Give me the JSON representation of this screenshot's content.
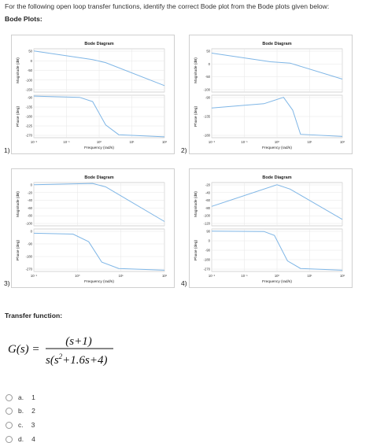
{
  "question": "For the following open loop transfer functions, identify the correct Bode plot from the Bode plots given below:",
  "bode_heading": "Bode Plots:",
  "tf_heading": "Transfer function:",
  "formula": {
    "lhs": "G(s) =",
    "numerator": "(s+1)",
    "denominator_prefix": "s(s",
    "denominator_exp": "2",
    "denominator_suffix": "+1.6s+4)"
  },
  "line_color": "#7fb6e6",
  "plots": [
    {
      "num": "1)",
      "title": "Bode Diagram",
      "mag_label": "Magnitude (dB)",
      "phase_label": "Phase (deg)",
      "xlabel": "Frequency  (rad/s)",
      "mag_ticks": [
        "50",
        "0",
        "-50",
        "-100",
        "-150"
      ],
      "phase_ticks": [
        "-90",
        "-135",
        "-180",
        "-225",
        "-270"
      ],
      "x_ticks": [
        "10⁻²",
        "10⁻¹",
        "10⁰",
        "10¹",
        "10²"
      ]
    },
    {
      "num": "2)",
      "title": "Bode Diagram",
      "mag_label": "Magnitude (dB)",
      "phase_label": "Phase (deg)",
      "xlabel": "Frequency  (rad/s)",
      "mag_ticks": [
        "50",
        "0",
        "-50",
        "-100"
      ],
      "phase_ticks": [
        "-90",
        "-135",
        "-180"
      ],
      "x_ticks": [
        "10⁻²",
        "10⁻¹",
        "10⁰",
        "10¹",
        "10²"
      ]
    },
    {
      "num": "3)",
      "title": "Bode Diagram",
      "mag_label": "Magnitude (dB)",
      "phase_label": "Phase (deg)",
      "xlabel": "Frequency  (rad/s)",
      "mag_ticks": [
        "0",
        "-20",
        "-40",
        "-60",
        "-80",
        "-100"
      ],
      "phase_ticks": [
        "0",
        "-90",
        "-180",
        "-270"
      ],
      "x_ticks": [
        "10⁻¹",
        "10⁰",
        "10¹",
        "10²"
      ]
    },
    {
      "num": "4)",
      "title": "Bode Diagram",
      "mag_label": "Magnitude (dB)",
      "phase_label": "Phase (deg)",
      "xlabel": "Frequency  (rad/s)",
      "mag_ticks": [
        "-20",
        "-40",
        "-60",
        "-80",
        "-100",
        "-120"
      ],
      "phase_ticks": [
        "90",
        "0",
        "-90",
        "-180",
        "-270"
      ],
      "x_ticks": [
        "10⁻²",
        "10⁻¹",
        "10⁰",
        "10¹",
        "10²"
      ]
    }
  ],
  "options": [
    {
      "letter": "a.",
      "value": "1"
    },
    {
      "letter": "b.",
      "value": "2"
    },
    {
      "letter": "c.",
      "value": "3"
    },
    {
      "letter": "d.",
      "value": "4"
    }
  ]
}
